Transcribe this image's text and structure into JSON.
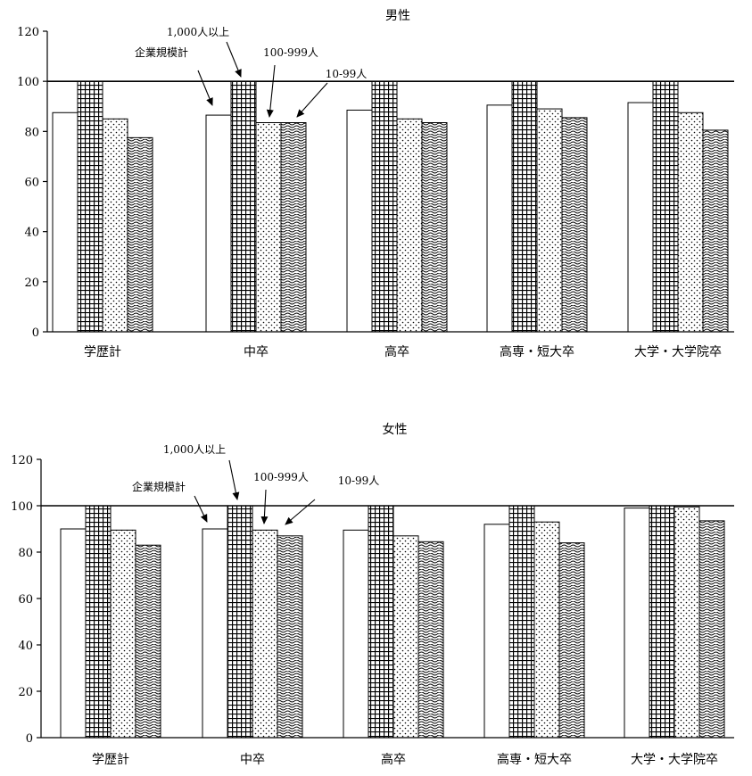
{
  "chart_data": [
    {
      "type": "bar",
      "title": "男性",
      "categories": [
        "学歴計",
        "中卒",
        "高卒",
        "高専・短大卒",
        "大学・大学院卒"
      ],
      "series": [
        {
          "name": "企業規模計",
          "values": [
            87.5,
            86.5,
            88.5,
            90.5,
            91.5
          ],
          "pattern": "plain"
        },
        {
          "name": "1,000人以上",
          "values": [
            100,
            100,
            100,
            100,
            100
          ],
          "pattern": "grid"
        },
        {
          "name": "100-999人",
          "values": [
            85,
            83.5,
            85,
            89,
            87.5
          ],
          "pattern": "dots"
        },
        {
          "name": "10-99人",
          "values": [
            77.5,
            83.5,
            83.5,
            85.5,
            80.5
          ],
          "pattern": "wave"
        }
      ],
      "ylim": [
        0,
        120
      ],
      "yticks": [
        0,
        20,
        40,
        60,
        80,
        100,
        120
      ],
      "reference_line": 100,
      "xlabel": "",
      "ylabel": "",
      "grid": false,
      "legend": "annotations with arrows pointing to bars of 中卒"
    },
    {
      "type": "bar",
      "title": "女性",
      "categories": [
        "学歴計",
        "中卒",
        "高卒",
        "高専・短大卒",
        "大学・大学院卒"
      ],
      "series": [
        {
          "name": "企業規模計",
          "values": [
            90,
            90,
            89.5,
            92,
            99
          ],
          "pattern": "plain"
        },
        {
          "name": "1,000人以上",
          "values": [
            100,
            100,
            100,
            100,
            100
          ],
          "pattern": "grid"
        },
        {
          "name": "100-999人",
          "values": [
            89.5,
            89.5,
            87,
            93,
            99.5
          ],
          "pattern": "dots"
        },
        {
          "name": "10-99人",
          "values": [
            83,
            87,
            84.5,
            84,
            93.5
          ],
          "pattern": "wave"
        }
      ],
      "ylim": [
        0,
        120
      ],
      "yticks": [
        0,
        20,
        40,
        60,
        80,
        100,
        120
      ],
      "reference_line": 100,
      "xlabel": "",
      "ylabel": "",
      "grid": false,
      "legend": "annotations with arrows pointing to bars of 中卒"
    }
  ]
}
